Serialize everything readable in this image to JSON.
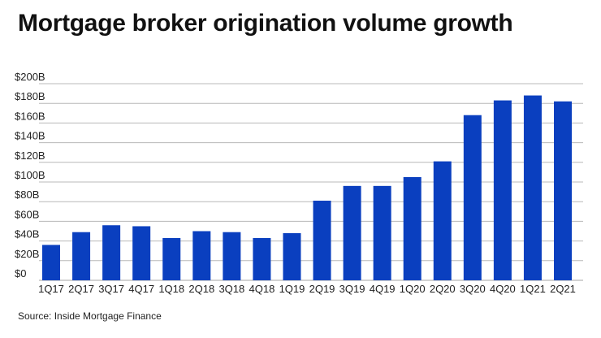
{
  "title": "Mortgage broker origination volume growth",
  "source": "Source: Inside Mortgage Finance",
  "colors": {
    "bar": "#0a3fbf",
    "grid": "#b8b8b8",
    "text": "#222222"
  },
  "chart_data": {
    "type": "bar",
    "title": "Mortgage broker origination volume growth",
    "xlabel": "",
    "ylabel": "",
    "categories": [
      "1Q17",
      "2Q17",
      "3Q17",
      "4Q17",
      "1Q18",
      "2Q18",
      "3Q18",
      "4Q18",
      "1Q19",
      "2Q19",
      "3Q19",
      "4Q19",
      "1Q20",
      "2Q20",
      "3Q20",
      "4Q20",
      "1Q21",
      "2Q21"
    ],
    "values": [
      36,
      49,
      56,
      55,
      43,
      50,
      49,
      43,
      48,
      81,
      96,
      96,
      105,
      121,
      168,
      183,
      188,
      182
    ],
    "ylim": [
      0,
      200
    ],
    "yticks": [
      0,
      20,
      40,
      60,
      80,
      100,
      120,
      140,
      160,
      180,
      200
    ],
    "ytick_labels": [
      "$0",
      "$20B",
      "$40B",
      "$60B",
      "$80B",
      "$100B",
      "$120B",
      "$140B",
      "$160B",
      "$180B",
      "$200B"
    ],
    "grid": true,
    "legend": "none"
  }
}
